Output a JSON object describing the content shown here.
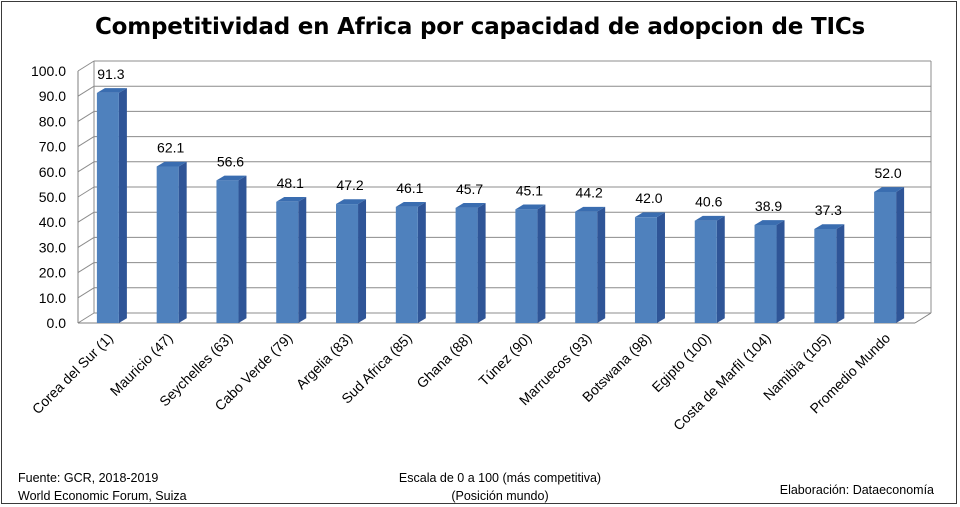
{
  "chart_data": {
    "type": "bar",
    "title": "Competitividad en Africa por capacidad de adopcion de TICs",
    "categories": [
      "Corea del Sur (1)",
      "Mauricio (47)",
      "Seychelles (63)",
      "Cabo Verde (79)",
      "Argelia (83)",
      "Sud Africa (85)",
      "Ghana (88)",
      "Túnez (90)",
      "Marruecos (93)",
      "Botswana (98)",
      "Egipto (100)",
      "Costa de Marfil (104)",
      "Namibia (105)",
      "Promedio Mundo"
    ],
    "values": [
      91.3,
      62.1,
      56.6,
      48.1,
      47.2,
      46.1,
      45.7,
      45.1,
      44.2,
      42.0,
      40.6,
      38.9,
      37.3,
      52.0
    ],
    "value_labels": [
      "91.3",
      "62.1",
      "56.6",
      "48.1",
      "47.2",
      "46.1",
      "45.7",
      "45.1",
      "44.2",
      "42.0",
      "40.6",
      "38.9",
      "37.3",
      "52.0"
    ],
    "ylim": [
      0,
      100
    ],
    "yticks": [
      "0.0",
      "10.0",
      "20.0",
      "30.0",
      "40.0",
      "50.0",
      "60.0",
      "70.0",
      "80.0",
      "90.0",
      "100.0"
    ],
    "grid": true,
    "bar_color": "#4f81bd",
    "bar_side_color": "#2f5597",
    "bar_top_color": "#3a6db0",
    "xlabel": "",
    "ylabel": ""
  },
  "footer": {
    "source_line1": "Fuente:  GCR, 2018-2019",
    "source_line2": "World Economic Forum, Suiza",
    "scale_line1": "Escala de 0 a 100 (más competitiva)",
    "scale_line2": "(Posición mundo)",
    "credit": "Elaboración: Dataeconomía"
  }
}
